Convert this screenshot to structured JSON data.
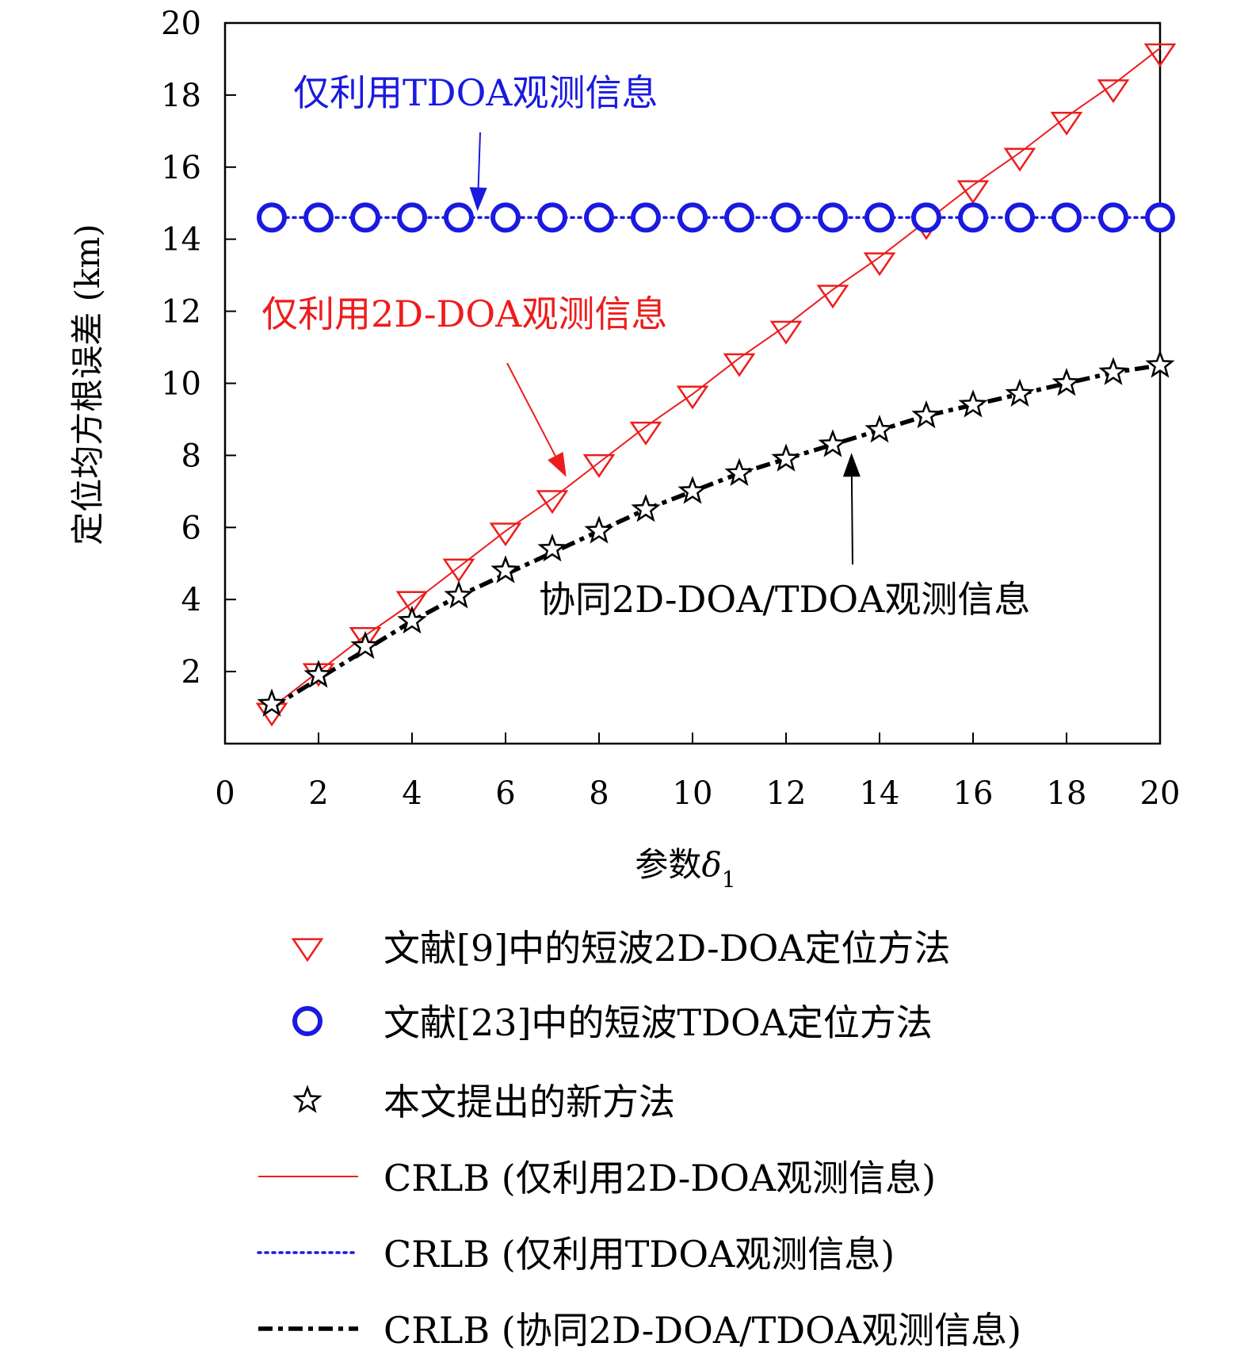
{
  "chart_data": {
    "type": "line",
    "xlabel": "参数",
    "xlabel_symbol": "δ",
    "xlabel_subscript": "1",
    "ylabel": "定位均方根误差 (km)",
    "xlim": [
      0,
      20
    ],
    "ylim": [
      0,
      20
    ],
    "x_ticks": [
      "0",
      "2",
      "4",
      "6",
      "8",
      "10",
      "12",
      "14",
      "16",
      "18",
      "20"
    ],
    "y_ticks": [
      "2",
      "4",
      "6",
      "8",
      "10",
      "12",
      "14",
      "16",
      "18",
      "20"
    ],
    "x": [
      1,
      2,
      3,
      4,
      5,
      6,
      7,
      8,
      9,
      10,
      11,
      12,
      13,
      14,
      15,
      16,
      17,
      18,
      19,
      20
    ],
    "grid": false,
    "legend_placement": "below",
    "series": [
      {
        "name": "文献[9]中的短波2D-DOA定位方法",
        "marker": "triangle-down",
        "color": "#ee1c1c",
        "values": [
          0.9,
          2.0,
          3.0,
          4.0,
          4.9,
          5.9,
          6.8,
          7.8,
          8.7,
          9.7,
          10.6,
          11.5,
          12.5,
          13.4,
          14.4,
          15.4,
          16.3,
          17.3,
          18.2,
          19.2
        ]
      },
      {
        "name": "文献[23]中的短波TDOA定位方法",
        "marker": "circle",
        "color": "#1a1adf",
        "values": [
          14.6,
          14.6,
          14.6,
          14.6,
          14.6,
          14.6,
          14.6,
          14.6,
          14.6,
          14.6,
          14.6,
          14.6,
          14.6,
          14.6,
          14.6,
          14.6,
          14.6,
          14.6,
          14.6,
          14.6
        ]
      },
      {
        "name": "本文提出的新方法",
        "marker": "star",
        "color": "#000000",
        "values": [
          1.1,
          1.9,
          2.7,
          3.4,
          4.1,
          4.8,
          5.4,
          5.9,
          6.5,
          7.0,
          7.5,
          7.9,
          8.3,
          8.7,
          9.1,
          9.4,
          9.7,
          10.0,
          10.3,
          10.5
        ]
      },
      {
        "name": "CRLB (仅利用2D-DOA观测信息)",
        "line": "solid",
        "color": "#ee1c1c",
        "values": [
          1.0,
          2.0,
          3.0,
          3.9,
          4.9,
          5.9,
          6.8,
          7.8,
          8.8,
          9.7,
          10.7,
          11.6,
          12.6,
          13.5,
          14.5,
          15.5,
          16.4,
          17.4,
          18.3,
          19.3
        ]
      },
      {
        "name": "CRLB (仅利用TDOA观测信息)",
        "line": "dotted",
        "color": "#1a1adf",
        "values": [
          14.6,
          14.6,
          14.6,
          14.6,
          14.6,
          14.6,
          14.6,
          14.6,
          14.6,
          14.6,
          14.6,
          14.6,
          14.6,
          14.6,
          14.6,
          14.6,
          14.6,
          14.6,
          14.6,
          14.6
        ]
      },
      {
        "name": "CRLB (协同2D-DOA/TDOA观测信息)",
        "line": "dashdot",
        "color": "#000000",
        "values": [
          1.0,
          1.8,
          2.6,
          3.4,
          4.1,
          4.7,
          5.3,
          5.9,
          6.5,
          7.0,
          7.5,
          7.9,
          8.3,
          8.7,
          9.1,
          9.4,
          9.7,
          10.0,
          10.3,
          10.5
        ]
      }
    ],
    "annotations": [
      {
        "text": "仅利用TDOA观测信息",
        "color": "#1a1adf",
        "arrow_to": [
          5.4,
          14.6
        ]
      },
      {
        "text": "仅利用2D-DOA观测信息",
        "color": "#ee1c1c",
        "arrow_to": [
          7.3,
          7.4
        ]
      },
      {
        "text": "协同2D-DOA/TDOA观测信息",
        "color": "#000000",
        "arrow_to": [
          13.4,
          8.2
        ]
      }
    ]
  }
}
